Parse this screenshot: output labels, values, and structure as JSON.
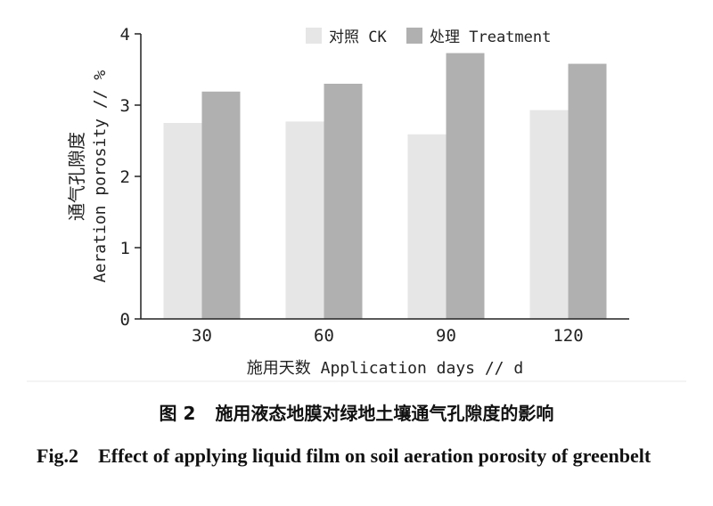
{
  "chart_data": {
    "type": "bar",
    "categories": [
      "30",
      "60",
      "90",
      "120"
    ],
    "series": [
      {
        "name": "对照 CK",
        "color": "#e6e6e6",
        "values": [
          2.75,
          2.77,
          2.59,
          2.93
        ]
      },
      {
        "name": "处理 Treatment",
        "color": "#b0b0b0",
        "values": [
          3.19,
          3.3,
          3.73,
          3.58
        ]
      }
    ],
    "ylim": [
      0,
      4
    ],
    "yticks": [
      "0",
      "1",
      "2",
      "3",
      "4"
    ],
    "ylabel_cn": "通气孔隙度",
    "ylabel_en": "Aeration porosity // %",
    "xlabel": "施用天数 Application days // d",
    "legend_position": "top-right",
    "grid": false
  },
  "caption": {
    "cn_label": "图 2",
    "cn_text": "施用液态地膜对绿地土壤通气孔隙度的影响",
    "en_label": "Fig.2",
    "en_text": "Effect of applying liquid film on soil aeration porosity of greenbelt"
  }
}
